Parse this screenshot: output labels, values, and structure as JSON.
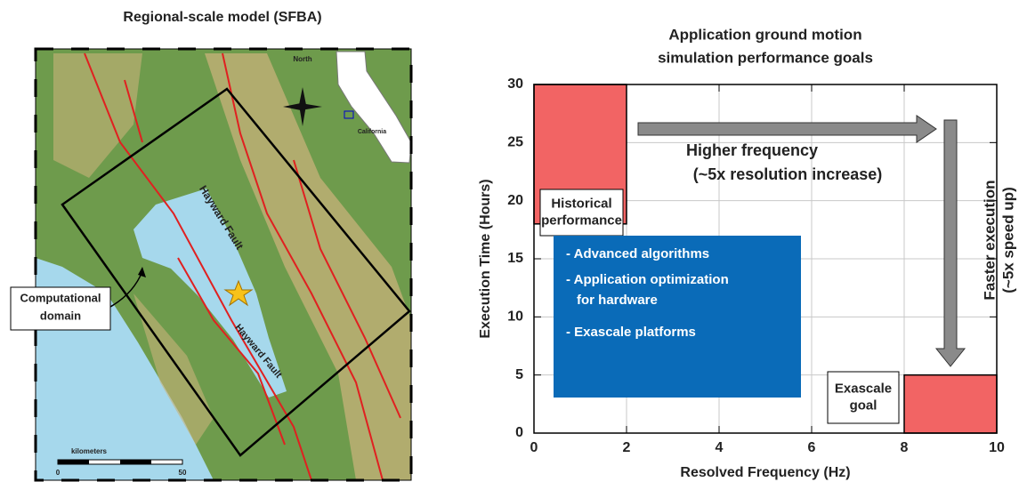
{
  "map": {
    "title": "Regional-scale model (SFBA)",
    "north": "North",
    "inset": "California",
    "fault_labels": [
      "Hayward Fault",
      "Hayward Fault"
    ],
    "domain_label": [
      "Computational",
      "domain"
    ],
    "scale": {
      "unit": "kilometers",
      "ticks": [
        0,
        50
      ]
    }
  },
  "chart_data": {
    "type": "region",
    "title": [
      "Application ground motion",
      "simulation performance goals"
    ],
    "x_label": "Resolved Frequency (Hz)",
    "y_label": "Execution Time (Hours)",
    "xlim": [
      0,
      10
    ],
    "xticks": [
      0,
      2,
      4,
      6,
      8,
      10
    ],
    "ylim": [
      0,
      30
    ],
    "yticks": [
      0,
      5,
      10,
      15,
      20,
      25,
      30
    ],
    "grid": true,
    "regions": [
      {
        "name": [
          "Historical",
          "performance"
        ],
        "x": [
          0,
          2
        ],
        "y": [
          18,
          30
        ],
        "color": "#f26464"
      },
      {
        "name": [
          "Exascale",
          "goal"
        ],
        "x": [
          8,
          10
        ],
        "y": [
          0,
          5
        ],
        "color": "#f26464"
      }
    ],
    "annotations": [
      "Higher frequency",
      "(~5x resolution increase)",
      "Faster execution",
      "(~5x speed up)"
    ],
    "bullets": [
      "- Advanced algorithms",
      "- Application optimization",
      "for hardware",
      "- Exascale platforms"
    ],
    "bullet_box_color": "#0a6bb8"
  }
}
